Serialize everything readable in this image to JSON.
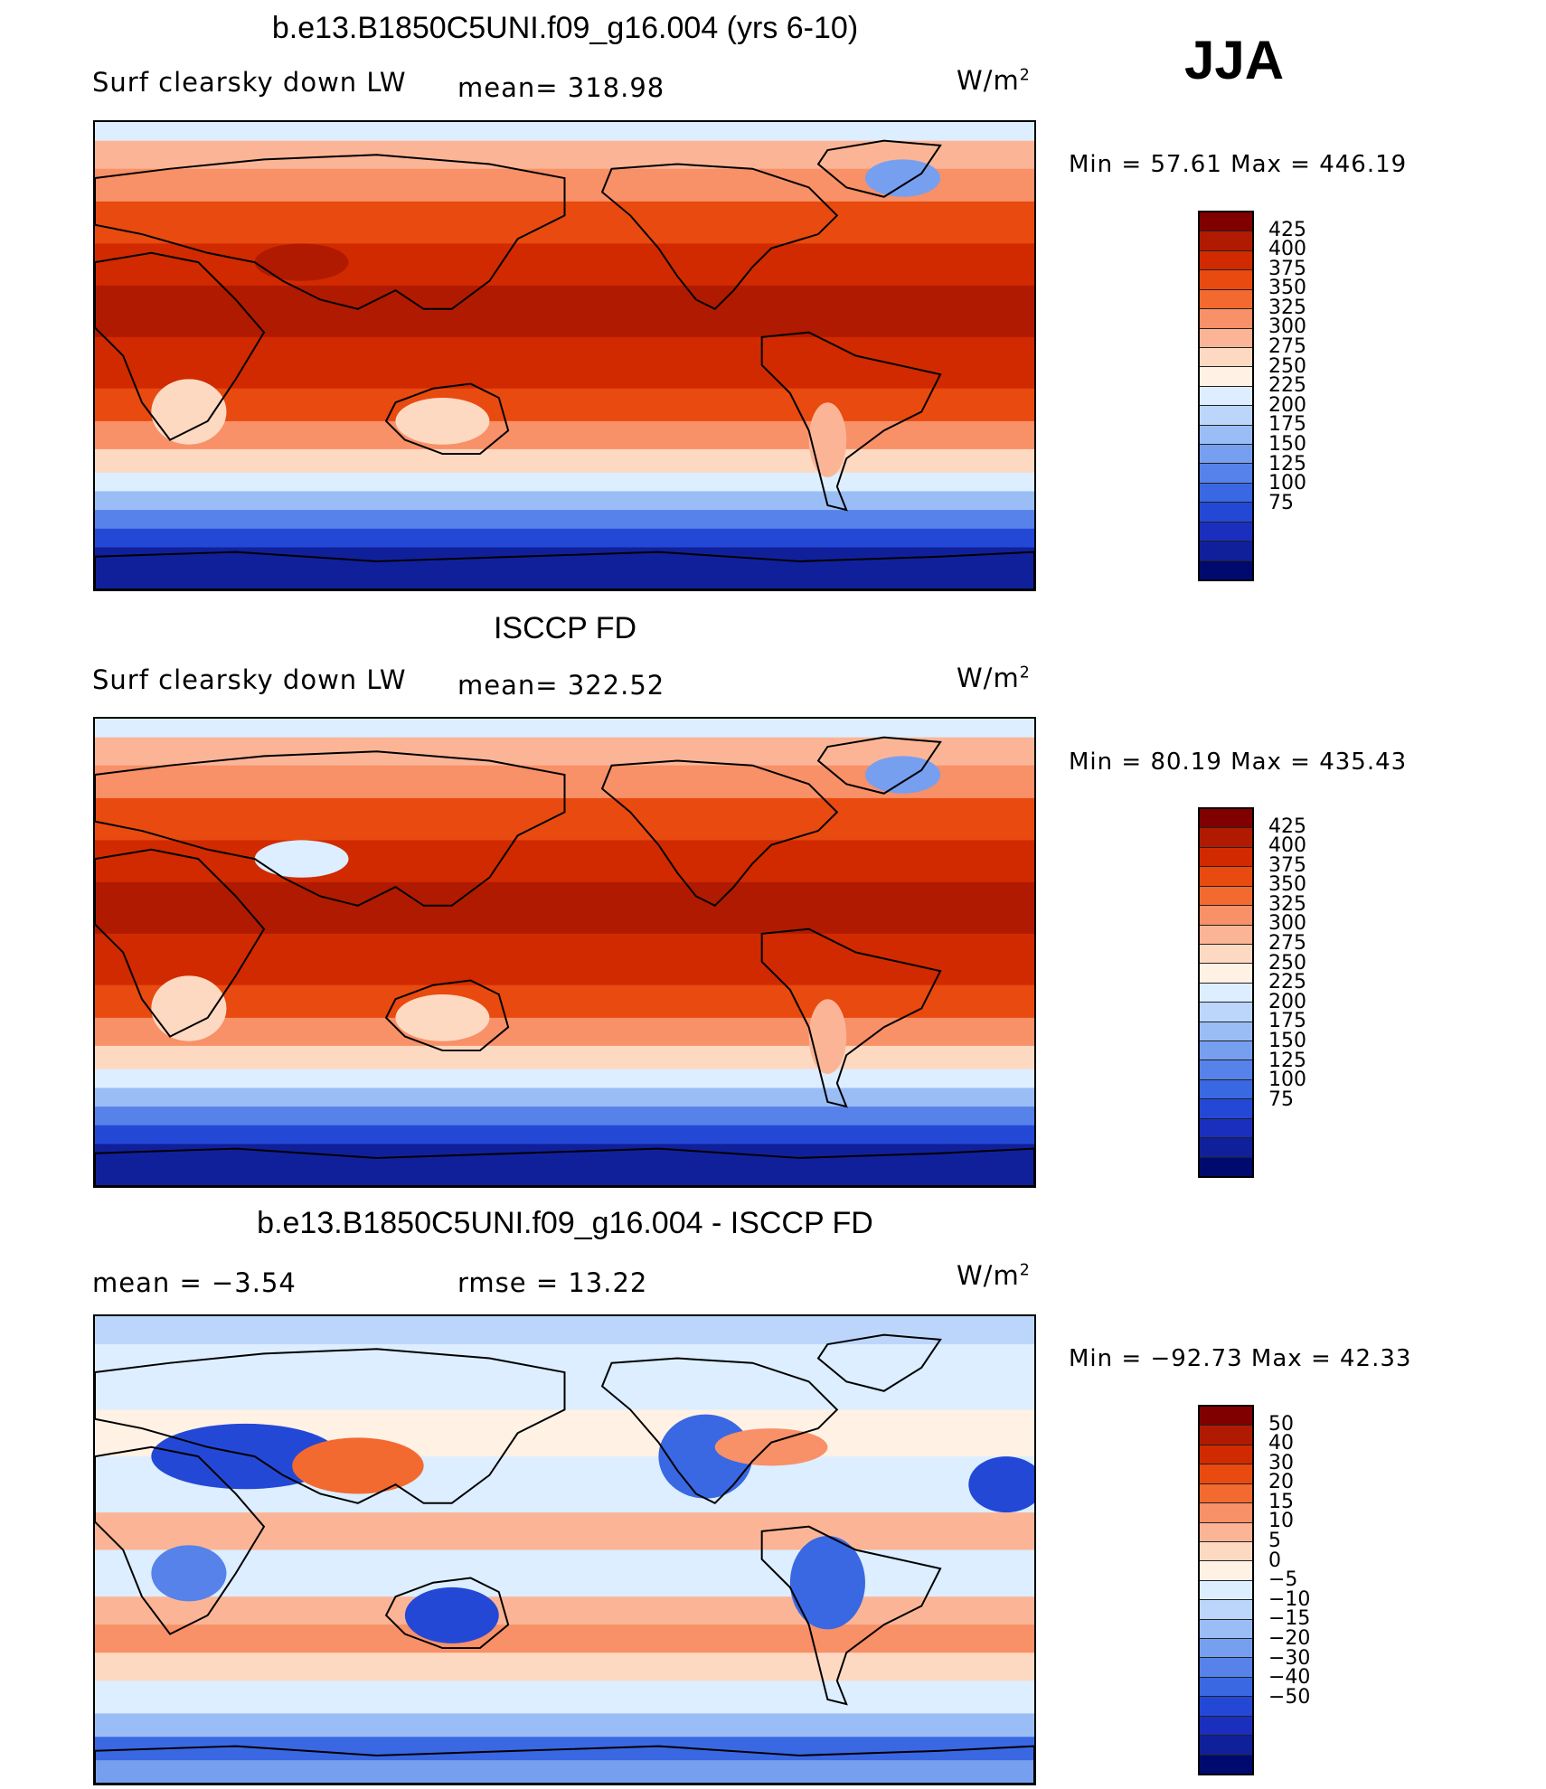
{
  "season": "JJA",
  "coast_color": "#000000",
  "panels": [
    {
      "title": "b.e13.B1850C5UNI.f09_g16.004 (yrs 6-10)",
      "left": "Surf clearsky down LW",
      "stat": "mean=  318.98",
      "units_base": "W/m",
      "units_exp": "2",
      "minmax": "Min =   57.61  Max  =  446.19",
      "kind": "abs"
    },
    {
      "title": "ISCCP FD",
      "left": "Surf clearsky down LW",
      "stat": "mean=  322.52",
      "units_base": "W/m",
      "units_exp": "2",
      "minmax": "Min =   80.19  Max  =  435.43",
      "kind": "abs2"
    },
    {
      "title": "b.e13.B1850C5UNI.f09_g16.004 - ISCCP FD",
      "left": "mean  =    −3.54",
      "stat": "rmse  =    13.22",
      "units_base": "W/m",
      "units_exp": "2",
      "minmax": "Min  = −92.73  Max  =    42.33",
      "kind": "diff"
    }
  ],
  "colorbar_abs": {
    "colors": [
      "#800000",
      "#b01a00",
      "#d12a00",
      "#e84a10",
      "#f26a30",
      "#f89068",
      "#fbb596",
      "#fdd9c2",
      "#fff1e4",
      "#dceeff",
      "#bcd6fb",
      "#9bbdf6",
      "#779ff0",
      "#5682ea",
      "#3a67e2",
      "#2448d6",
      "#1a2fbe",
      "#10209a",
      "#000a6e"
    ],
    "labels": [
      "425",
      "400",
      "375",
      "350",
      "325",
      "300",
      "275",
      "250",
      "225",
      "200",
      "175",
      "150",
      "125",
      "100",
      "75"
    ]
  },
  "colorbar_diff": {
    "colors": [
      "#800000",
      "#b01a00",
      "#d12a00",
      "#e84a10",
      "#f26a30",
      "#f89068",
      "#fbb596",
      "#fdd9c2",
      "#fff1e4",
      "#dceeff",
      "#bcd6fb",
      "#9bbdf6",
      "#779ff0",
      "#5682ea",
      "#3a67e2",
      "#2448d6",
      "#1a2fbe",
      "#10209a",
      "#000a6e"
    ],
    "labels": [
      "50",
      "40",
      "30",
      "20",
      "15",
      "10",
      "5",
      "0",
      "−5",
      "−10",
      "−15",
      "−20",
      "−30",
      "−40",
      "−50"
    ]
  }
}
